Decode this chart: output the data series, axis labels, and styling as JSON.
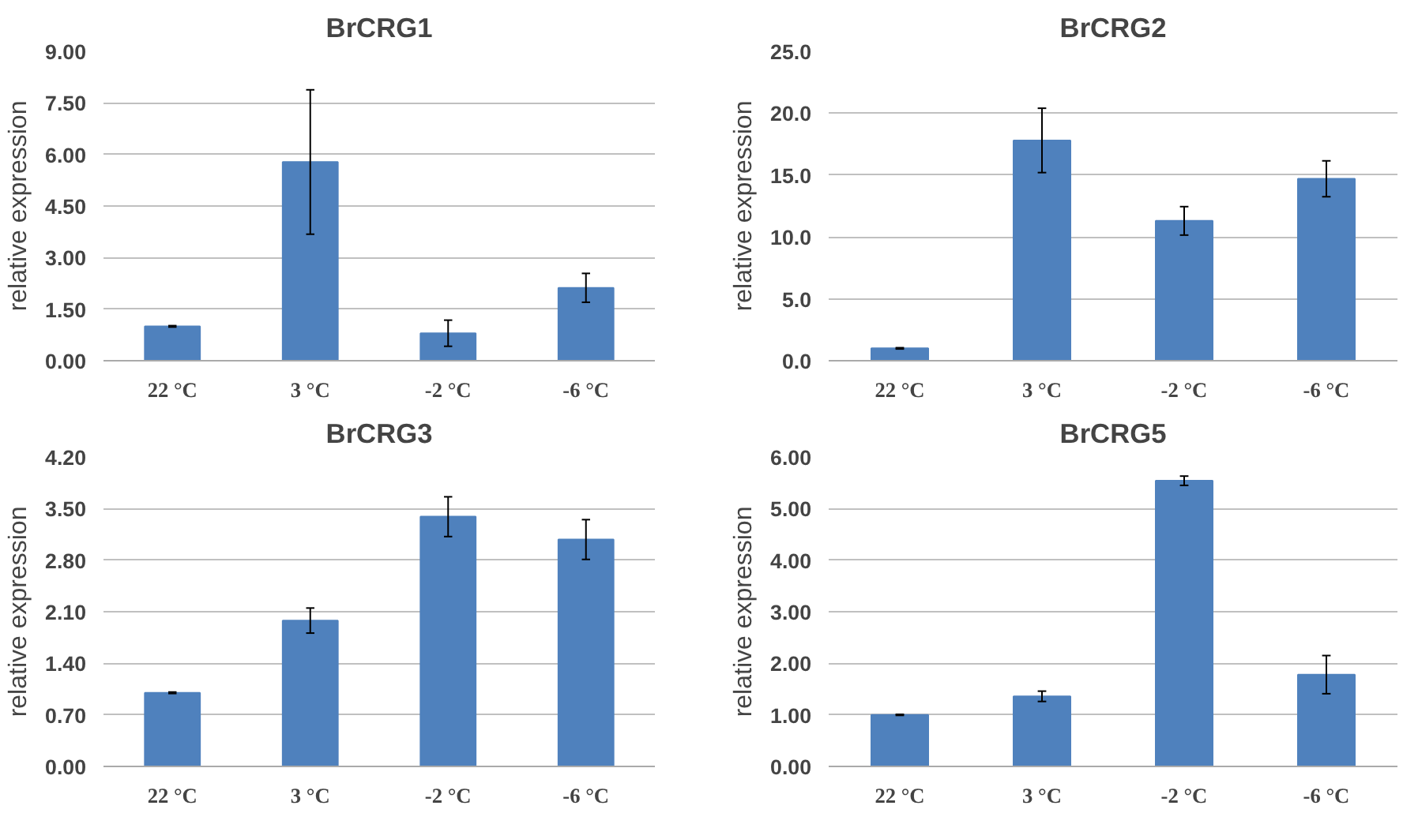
{
  "chart_data": [
    {
      "type": "bar",
      "title": "BrCRG1",
      "ylabel": "relative expression",
      "categories": [
        "22 °C",
        "3 °C",
        "-2 °C",
        "-6 °C"
      ],
      "values": [
        1.0,
        5.78,
        0.8,
        2.12
      ],
      "errors": [
        0.02,
        2.1,
        0.38,
        0.42
      ],
      "color": "#4f81bd",
      "ylim": [
        0,
        9
      ],
      "yticks": [
        {
          "value": 0,
          "label": "0.00"
        },
        {
          "value": 1.5,
          "label": "1.50"
        },
        {
          "value": 3,
          "label": "3.00"
        },
        {
          "value": 4.5,
          "label": "4.50"
        },
        {
          "value": 6,
          "label": "6.00"
        },
        {
          "value": 7.5,
          "label": "7.50"
        },
        {
          "value": 9,
          "label": "9.00"
        }
      ],
      "grid": "y",
      "legend": false
    },
    {
      "type": "bar",
      "title": "BrCRG2",
      "ylabel": "relative expression",
      "categories": [
        "22 °C",
        "3 °C",
        "-2 °C",
        "-6 °C"
      ],
      "values": [
        1.0,
        17.8,
        11.3,
        14.7
      ],
      "errors": [
        0.05,
        2.6,
        1.15,
        1.45
      ],
      "color": "#4f81bd",
      "ylim": [
        0,
        25
      ],
      "yticks": [
        {
          "value": 0,
          "label": "0.0"
        },
        {
          "value": 5,
          "label": "5.0"
        },
        {
          "value": 10,
          "label": "10.0"
        },
        {
          "value": 15,
          "label": "15.0"
        },
        {
          "value": 20,
          "label": "20.0"
        },
        {
          "value": 25,
          "label": "25.0"
        }
      ],
      "grid": "y",
      "legend": false
    },
    {
      "type": "bar",
      "title": "BrCRG3",
      "ylabel": "relative expression",
      "categories": [
        "22 °C",
        "3 °C",
        "-2 °C",
        "-6 °C"
      ],
      "values": [
        1.0,
        1.98,
        3.39,
        3.08
      ],
      "errors": [
        0.01,
        0.17,
        0.27,
        0.27
      ],
      "color": "#4f81bd",
      "ylim": [
        0,
        4.2
      ],
      "yticks": [
        {
          "value": 0,
          "label": "0.00"
        },
        {
          "value": 0.7,
          "label": "0.70"
        },
        {
          "value": 1.4,
          "label": "1.40"
        },
        {
          "value": 2.1,
          "label": "2.10"
        },
        {
          "value": 2.8,
          "label": "2.80"
        },
        {
          "value": 3.5,
          "label": "3.50"
        },
        {
          "value": 4.2,
          "label": "4.20"
        }
      ],
      "grid": "y",
      "legend": false
    },
    {
      "type": "bar",
      "title": "BrCRG5",
      "ylabel": "relative expression",
      "categories": [
        "22 °C",
        "3 °C",
        "-2 °C",
        "-6 °C"
      ],
      "values": [
        1.0,
        1.36,
        5.54,
        1.78
      ],
      "errors": [
        0.01,
        0.1,
        0.09,
        0.37
      ],
      "color": "#4f81bd",
      "ylim": [
        0,
        6
      ],
      "yticks": [
        {
          "value": 0,
          "label": "0.00"
        },
        {
          "value": 1,
          "label": "1.00"
        },
        {
          "value": 2,
          "label": "2.00"
        },
        {
          "value": 3,
          "label": "3.00"
        },
        {
          "value": 4,
          "label": "4.00"
        },
        {
          "value": 5,
          "label": "5.00"
        },
        {
          "value": 6,
          "label": "6.00"
        }
      ],
      "grid": "y",
      "legend": false
    }
  ]
}
